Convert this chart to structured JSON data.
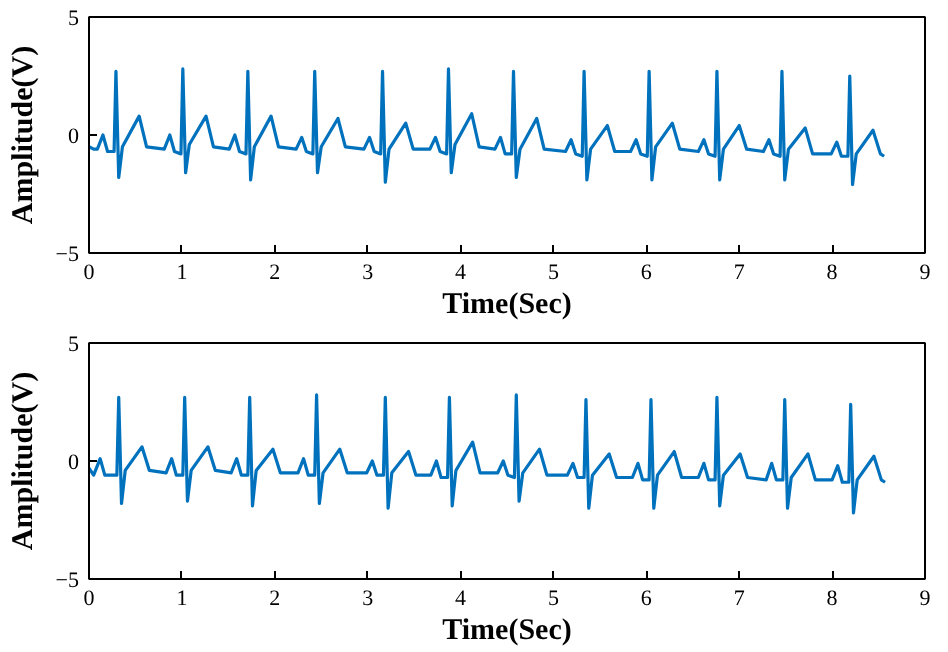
{
  "chart_data": [
    {
      "type": "line",
      "xlabel": "Time(Sec)",
      "ylabel": "Amplitude(V)",
      "xlim": [
        0,
        9
      ],
      "ylim": [
        -5,
        5
      ],
      "xticks": [
        0,
        1,
        2,
        3,
        4,
        5,
        6,
        7,
        8,
        9
      ],
      "yticks": [
        -5,
        0,
        5
      ],
      "grid": false,
      "series": [
        {
          "color": "#0072bd",
          "x": [
            0,
            0.05,
            0.09,
            0.15,
            0.2,
            0.27,
            0.29,
            0.32,
            0.36,
            0.54,
            0.62,
            0.81,
            0.87,
            0.92,
            0.99,
            1.01,
            1.04,
            1.08,
            1.26,
            1.34,
            1.51,
            1.57,
            1.62,
            1.69,
            1.71,
            1.74,
            1.78,
            1.96,
            2.04,
            2.23,
            2.29,
            2.34,
            2.41,
            2.43,
            2.46,
            2.5,
            2.68,
            2.76,
            2.96,
            3.02,
            3.07,
            3.14,
            3.16,
            3.19,
            3.23,
            3.41,
            3.49,
            3.67,
            3.73,
            3.78,
            3.85,
            3.87,
            3.9,
            3.94,
            4.12,
            4.2,
            4.37,
            4.43,
            4.48,
            4.55,
            4.57,
            4.6,
            4.64,
            4.82,
            4.9,
            5.13,
            5.19,
            5.24,
            5.31,
            5.33,
            5.36,
            5.4,
            5.58,
            5.66,
            5.83,
            5.89,
            5.94,
            6.01,
            6.03,
            6.06,
            6.1,
            6.28,
            6.36,
            6.56,
            6.62,
            6.67,
            6.74,
            6.76,
            6.79,
            6.83,
            7.0,
            7.08,
            7.26,
            7.32,
            7.37,
            7.44,
            7.46,
            7.49,
            7.53,
            7.71,
            7.79,
            7.99,
            8.05,
            8.1,
            8.17,
            8.19,
            8.22,
            8.26,
            8.44,
            8.52,
            8.56
          ],
          "values": [
            -0.5,
            -0.6,
            -0.6,
            0.0,
            -0.7,
            -0.7,
            2.7,
            -1.8,
            -0.5,
            0.8,
            -0.5,
            -0.6,
            0.0,
            -0.7,
            -0.8,
            2.8,
            -1.6,
            -0.4,
            0.8,
            -0.5,
            -0.6,
            0.0,
            -0.7,
            -0.8,
            2.7,
            -1.9,
            -0.5,
            0.8,
            -0.5,
            -0.6,
            -0.1,
            -0.7,
            -0.8,
            2.7,
            -1.6,
            -0.5,
            0.7,
            -0.5,
            -0.6,
            -0.1,
            -0.7,
            -0.8,
            2.7,
            -2.0,
            -0.6,
            0.5,
            -0.6,
            -0.6,
            -0.1,
            -0.7,
            -0.8,
            2.8,
            -1.6,
            -0.4,
            0.9,
            -0.5,
            -0.6,
            -0.1,
            -0.8,
            -0.8,
            2.7,
            -1.8,
            -0.6,
            0.7,
            -0.6,
            -0.7,
            -0.2,
            -0.8,
            -0.9,
            2.7,
            -1.9,
            -0.6,
            0.4,
            -0.7,
            -0.7,
            -0.2,
            -0.8,
            -0.9,
            2.7,
            -1.9,
            -0.5,
            0.5,
            -0.6,
            -0.7,
            -0.2,
            -0.8,
            -0.9,
            2.7,
            -1.9,
            -0.6,
            0.4,
            -0.6,
            -0.7,
            -0.2,
            -0.8,
            -0.9,
            2.7,
            -1.9,
            -0.6,
            0.3,
            -0.8,
            -0.8,
            -0.3,
            -0.9,
            -0.9,
            2.5,
            -2.1,
            -0.8,
            0.2,
            -0.8,
            -0.9
          ]
        }
      ]
    },
    {
      "type": "line",
      "xlabel": "Time(Sec)",
      "ylabel": "Amplitude(V)",
      "xlim": [
        0,
        9
      ],
      "ylim": [
        -5,
        5
      ],
      "xticks": [
        0,
        1,
        2,
        3,
        4,
        5,
        6,
        7,
        8,
        9
      ],
      "yticks": [
        -5,
        0,
        5
      ],
      "grid": false,
      "series": [
        {
          "color": "#0072bd",
          "x": [
            0,
            0.05,
            0.12,
            0.17,
            0.23,
            0.3,
            0.32,
            0.35,
            0.39,
            0.57,
            0.65,
            0.83,
            0.89,
            0.94,
            1.01,
            1.03,
            1.06,
            1.1,
            1.28,
            1.36,
            1.53,
            1.59,
            1.64,
            1.71,
            1.73,
            1.76,
            1.8,
            1.98,
            2.06,
            2.25,
            2.31,
            2.36,
            2.43,
            2.45,
            2.48,
            2.52,
            2.7,
            2.78,
            2.99,
            3.05,
            3.1,
            3.17,
            3.19,
            3.22,
            3.26,
            3.44,
            3.52,
            3.68,
            3.74,
            3.79,
            3.86,
            3.88,
            3.91,
            3.95,
            4.13,
            4.21,
            4.4,
            4.46,
            4.51,
            4.58,
            4.6,
            4.63,
            4.67,
            4.85,
            4.93,
            5.15,
            5.21,
            5.26,
            5.33,
            5.35,
            5.38,
            5.42,
            5.6,
            5.68,
            5.85,
            5.91,
            5.96,
            6.03,
            6.05,
            6.08,
            6.12,
            6.3,
            6.38,
            6.56,
            6.62,
            6.67,
            6.74,
            6.76,
            6.79,
            6.83,
            7.01,
            7.09,
            7.29,
            7.35,
            7.4,
            7.47,
            7.49,
            7.52,
            7.56,
            7.74,
            7.82,
            8.0,
            8.06,
            8.11,
            8.18,
            8.2,
            8.23,
            8.27,
            8.45,
            8.53,
            8.57
          ],
          "values": [
            -0.3,
            -0.6,
            0.1,
            -0.6,
            -0.6,
            -0.6,
            2.7,
            -1.8,
            -0.4,
            0.6,
            -0.4,
            -0.5,
            0.1,
            -0.6,
            -0.6,
            2.7,
            -1.7,
            -0.4,
            0.6,
            -0.4,
            -0.5,
            0.1,
            -0.6,
            -0.6,
            2.7,
            -1.9,
            -0.4,
            0.5,
            -0.5,
            -0.5,
            0.1,
            -0.6,
            -0.6,
            2.8,
            -1.8,
            -0.5,
            0.5,
            -0.5,
            -0.5,
            0.0,
            -0.6,
            -0.6,
            2.7,
            -2.0,
            -0.5,
            0.4,
            -0.6,
            -0.6,
            0.0,
            -0.7,
            -0.7,
            2.7,
            -1.9,
            -0.4,
            0.8,
            -0.5,
            -0.5,
            0.0,
            -0.6,
            -0.7,
            2.8,
            -1.7,
            -0.5,
            0.5,
            -0.6,
            -0.6,
            -0.1,
            -0.7,
            -0.7,
            2.6,
            -2.0,
            -0.6,
            0.3,
            -0.7,
            -0.7,
            -0.1,
            -0.8,
            -0.8,
            2.6,
            -2.0,
            -0.6,
            0.4,
            -0.7,
            -0.7,
            -0.1,
            -0.8,
            -0.8,
            2.7,
            -1.9,
            -0.6,
            0.3,
            -0.7,
            -0.8,
            -0.1,
            -0.8,
            -0.8,
            2.6,
            -2.0,
            -0.7,
            0.3,
            -0.8,
            -0.8,
            -0.2,
            -0.9,
            -0.9,
            2.4,
            -2.2,
            -0.8,
            0.2,
            -0.8,
            -0.9
          ]
        }
      ]
    }
  ]
}
